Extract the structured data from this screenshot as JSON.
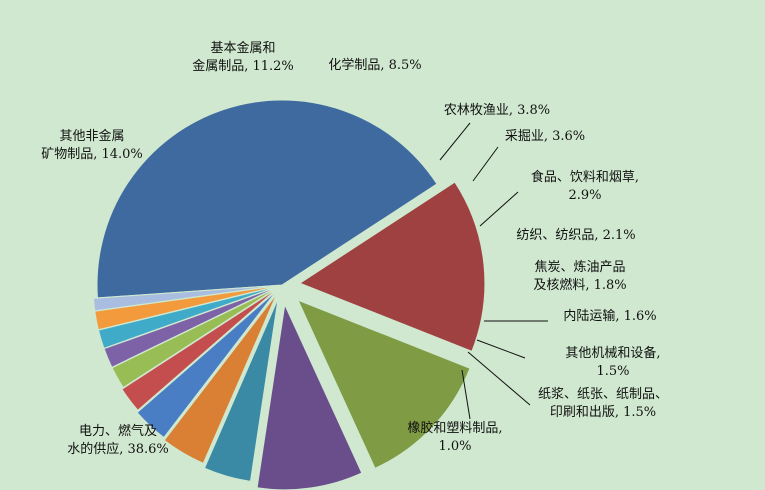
{
  "chart_data": {
    "type": "pie",
    "title": "",
    "legend": "none",
    "slices": [
      {
        "label": "电力、燃气及水的供应, 38.6%",
        "label_lines": [
          "电力、燃气及",
          "水的供应, 38.6%"
        ],
        "value": 38.6,
        "color": "#3f6a9f"
      },
      {
        "label": "其他非金属矿物制品, 14.0%",
        "label_lines": [
          "其他非金属",
          "矿物制品, 14.0%"
        ],
        "value": 14.0,
        "color": "#a04141"
      },
      {
        "label": "基本金属和金属制品, 11.2%",
        "label_lines": [
          "基本金属和",
          "金属制品, 11.2%"
        ],
        "value": 11.2,
        "color": "#7f9c45"
      },
      {
        "label": "化学制品, 8.5%",
        "label_lines": [
          "化学制品, 8.5%"
        ],
        "value": 8.5,
        "color": "#6a4e8c"
      },
      {
        "label": "农林牧渔业, 3.8%",
        "label_lines": [
          "农林牧渔业, 3.8%"
        ],
        "value": 3.8,
        "color": "#3a8aa5"
      },
      {
        "label": "采掘业, 3.6%",
        "label_lines": [
          "采掘业, 3.6%"
        ],
        "value": 3.6,
        "color": "#d98034"
      },
      {
        "label": "食品、饮料和烟草, 2.9%",
        "label_lines": [
          "食品、饮料和烟草,",
          "2.9%"
        ],
        "value": 2.9,
        "color": "#4a7ec4"
      },
      {
        "label": "纺织、纺织品, 2.1%",
        "label_lines": [
          "纺织、纺织品, 2.1%"
        ],
        "value": 2.1,
        "color": "#c44d4d"
      },
      {
        "label": "焦炭、炼油产品及核燃料, 1.8%",
        "label_lines": [
          "焦炭、炼油产品",
          "及核燃料, 1.8%"
        ],
        "value": 1.8,
        "color": "#98bd54"
      },
      {
        "label": "内陆运输, 1.6%",
        "label_lines": [
          "内陆运输, 1.6%"
        ],
        "value": 1.6,
        "color": "#7d62a8"
      },
      {
        "label": "其他机械和设备, 1.5%",
        "label_lines": [
          "其他机械和设备,",
          "1.5%"
        ],
        "value": 1.5,
        "color": "#40abc9"
      },
      {
        "label": "纸浆、纸张、纸制品、印刷和出版, 1.5%",
        "label_lines": [
          "纸浆、纸张、纸制品、",
          "印刷和出版, 1.5%"
        ],
        "value": 1.5,
        "color": "#f39a3c"
      },
      {
        "label": "橡胶和塑料制品, 1.0%",
        "label_lines": [
          "橡胶和塑料制品,",
          "1.0%"
        ],
        "value": 1.0,
        "color": "#a9bde0"
      }
    ]
  }
}
